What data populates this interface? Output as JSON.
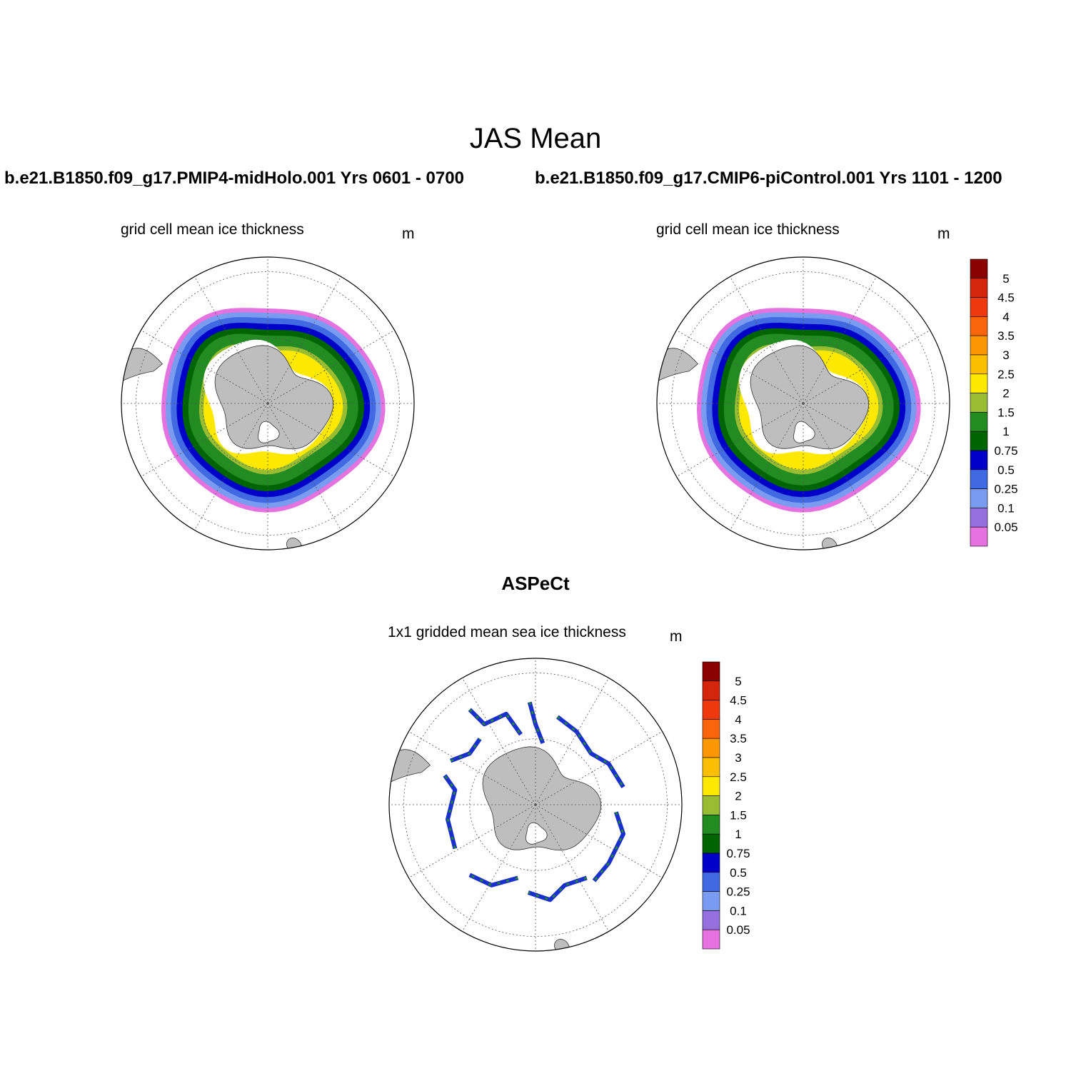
{
  "title": "JAS Mean",
  "cases": {
    "left": "b.e21.B1850.f09_g17.PMIP4-midHolo.001  Yrs 0601 - 0700",
    "right": "b.e21.B1850.f09_g17.CMIP6-piControl.001  Yrs 1101 - 1200"
  },
  "panels": [
    {
      "title": "grid cell mean ice thickness",
      "unit": "m"
    },
    {
      "title": "grid cell mean ice thickness",
      "unit": "m"
    },
    {
      "title": "1x1 gridded mean sea ice thickness",
      "unit": "m"
    }
  ],
  "obs_title": "ASPeCt",
  "colorbar": {
    "labels": [
      "5",
      "4.5",
      "4",
      "3.5",
      "3",
      "2.5",
      "2",
      "1.5",
      "1",
      "0.75",
      "0.5",
      "0.25",
      "0.1",
      "0.05"
    ],
    "colors": [
      "#8b0000",
      "#d4260b",
      "#f0380e",
      "#fa640a",
      "#fc9603",
      "#fcbe00",
      "#fce800",
      "#98bd33",
      "#228b22",
      "#006400",
      "#0000c8",
      "#4169e1",
      "#7a9cf0",
      "#9370db",
      "#e473e0"
    ]
  },
  "map_colors": {
    "land": "#bebebe",
    "ice_rings": [
      "#e473e0",
      "#7a9cf0",
      "#4169e1",
      "#0000c8",
      "#006400",
      "#228b22",
      "#98bd33",
      "#fce800"
    ]
  }
}
